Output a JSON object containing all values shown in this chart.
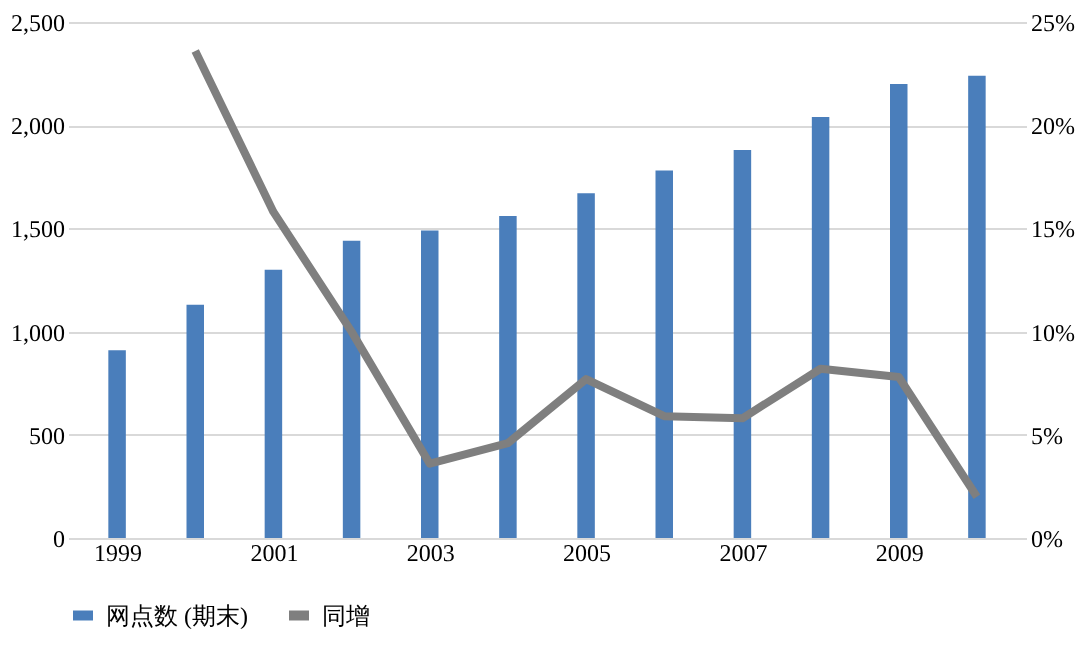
{
  "chart_data": {
    "type": "bar",
    "categories": [
      "1999",
      null,
      "2001",
      null,
      "2003",
      null,
      "2005",
      null,
      "2007",
      null,
      "2009",
      null
    ],
    "series": [
      {
        "name": "网点数 (期末)",
        "color": "#4a7ebb",
        "values": [
          910,
          1130,
          1300,
          1440,
          1490,
          1560,
          1670,
          1780,
          1880,
          2040,
          2200,
          2240
        ]
      },
      {
        "name": "同增",
        "type": "line",
        "axis": "y2",
        "color": "#7f7f7f",
        "values": [
          null,
          23.6,
          15.8,
          10.0,
          3.6,
          4.6,
          7.7,
          5.9,
          5.8,
          8.2,
          7.8,
          2.0
        ]
      }
    ],
    "ylim": [
      0,
      2500
    ],
    "yticks": [
      0,
      500,
      {
        "value": 1000,
        "label": "1,000"
      },
      {
        "value": 1500,
        "label": "1,500"
      },
      {
        "value": 2000,
        "label": "2,000"
      },
      {
        "value": 2500,
        "label": "2,500"
      }
    ],
    "y2lim": [
      0,
      25
    ],
    "y2ticks": [
      {
        "value": 0,
        "label": "0%"
      },
      {
        "value": 5,
        "label": "5%"
      },
      {
        "value": 10,
        "label": "10%"
      },
      {
        "value": 15,
        "label": "15%"
      },
      {
        "value": 20,
        "label": "20%"
      },
      {
        "value": 25,
        "label": "25%"
      }
    ],
    "grid": "y",
    "legend": "bottom",
    "marker": "none",
    "line_style": "solid"
  }
}
